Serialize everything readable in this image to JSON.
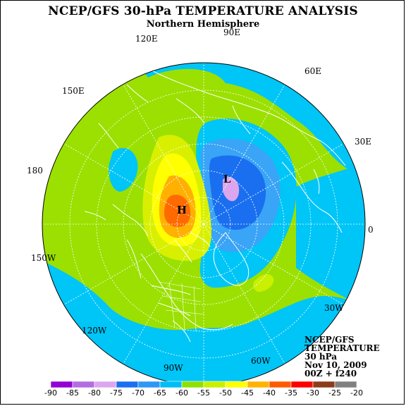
{
  "title": "NCEP/GFS 30-hPa TEMPERATURE ANALYSIS",
  "subtitle": "Northern Hemisphere",
  "longitude_labels": [
    {
      "id": "90e",
      "text": "90E"
    },
    {
      "id": "120e",
      "text": "120E"
    },
    {
      "id": "60e",
      "text": "60E"
    },
    {
      "id": "150e",
      "text": "150E"
    },
    {
      "id": "30e",
      "text": "30E"
    },
    {
      "id": "180",
      "text": "180"
    },
    {
      "id": "0",
      "text": "0"
    },
    {
      "id": "150w",
      "text": "150W"
    },
    {
      "id": "30w",
      "text": "30W"
    },
    {
      "id": "120w",
      "text": "120W"
    },
    {
      "id": "90w",
      "text": "90W"
    },
    {
      "id": "60w",
      "text": "60W"
    }
  ],
  "markers": {
    "high": "H",
    "low": "L"
  },
  "info_block": [
    "NCEP/GFS",
    "TEMPERATURE",
    "30 hPa",
    "Nov 10, 2009",
    "00Z + f240"
  ],
  "colorbar": {
    "ticks": [
      "-90",
      "-85",
      "-80",
      "-75",
      "-70",
      "-65",
      "-60",
      "-55",
      "-50",
      "-45",
      "-40",
      "-35",
      "-30",
      "-25",
      "-20"
    ],
    "colors": [
      "#9400d3",
      "#b36de0",
      "#dca6ee",
      "#1a6ff0",
      "#2d98f5",
      "#00bdf5",
      "#8fe000",
      "#c8f000",
      "#ffff00",
      "#ffb300",
      "#ff5a00",
      "#ff0000",
      "#8b3c1a",
      "#808080"
    ]
  },
  "palette": {
    "ocean_green": "#9be000",
    "cyan": "#00c5f7",
    "light_blue": "#3aa4f6",
    "blue": "#1a6ff0",
    "pink": "#dca6ee",
    "yellow_green": "#d8f000",
    "yellow": "#ffff00",
    "orange": "#ffb000",
    "red_orange": "#ff6a00"
  }
}
